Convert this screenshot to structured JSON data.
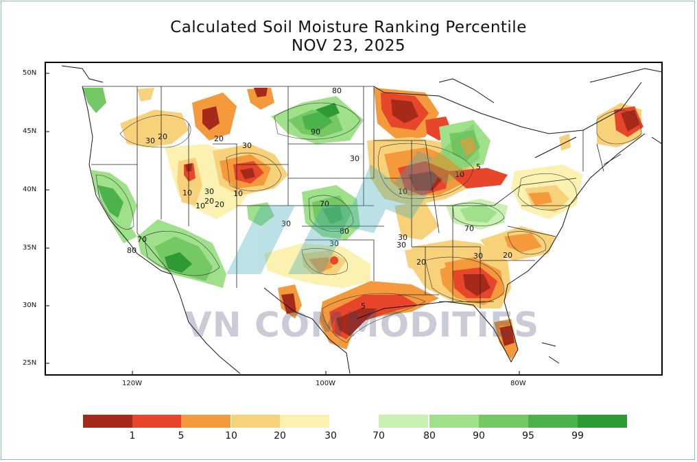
{
  "title": {
    "line1": "Calculated Soil Moisture Ranking Percentile",
    "line2": "NOV 23, 2025"
  },
  "axes": {
    "lat_labels": [
      "50N",
      "45N",
      "40N",
      "35N",
      "30N",
      "25N"
    ],
    "lon_labels": [
      "120W",
      "100W",
      "80W"
    ]
  },
  "contour_labels": [
    "30",
    "20",
    "20",
    "30",
    "80",
    "90",
    "30",
    "10",
    "10",
    "5",
    "10",
    "10",
    "30",
    "20",
    "20",
    "10",
    "70",
    "80",
    "30",
    "70",
    "30",
    "80",
    "30",
    "30",
    "20",
    "70",
    "30",
    "20",
    "5"
  ],
  "legend": {
    "colors": [
      "#a52a1a",
      "#e8462a",
      "#f49a3c",
      "#f7d27a",
      "#fbf1b0",
      "#c8f0b0",
      "#9fe08a",
      "#74c964",
      "#4cb24a",
      "#2e9a36"
    ],
    "labels": [
      "1",
      "5",
      "10",
      "20",
      "30",
      "70",
      "80",
      "90",
      "95",
      "99"
    ]
  },
  "watermark": "VN COMMODITIES"
}
